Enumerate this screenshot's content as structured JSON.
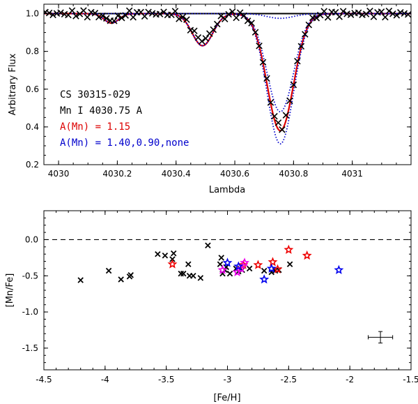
{
  "chart_data": [
    {
      "type": "line",
      "panel": "top",
      "xlabel": "Lambda",
      "ylabel": "Arbitrary Flux",
      "xlim": [
        4029.95,
        4031.2
      ],
      "ylim": [
        0.2,
        1.05
      ],
      "xticks": [
        4030,
        4030.2,
        4030.4,
        4030.6,
        4030.8,
        4031
      ],
      "xtick_labels": [
        "4030",
        "4030.2",
        "4030.4",
        "4030.6",
        "4030.8",
        "4031"
      ],
      "yticks": [
        0.2,
        0.4,
        0.6,
        0.8,
        1.0
      ],
      "ytick_labels": [
        "0.2",
        "0.4",
        "0.6",
        "0.8",
        "1.0"
      ],
      "annotations": [
        {
          "text": "CS 30315-029",
          "color": "#000000"
        },
        {
          "text": "Mn I 4030.75 A",
          "color": "#000000"
        },
        {
          "text": "A(Mn) = 1.15",
          "color": "#dd0000"
        },
        {
          "text": "A(Mn) = 1.40,0.90,none",
          "color": "#0000cc"
        }
      ],
      "continuum": 1.0,
      "lines": [
        {
          "center": 4030.18,
          "sigma": 0.025
        },
        {
          "center": 4030.49,
          "sigma": 0.035
        },
        {
          "center": 4030.755,
          "sigma": 0.045
        }
      ],
      "series": [
        {
          "name": "observed",
          "style": "x",
          "color": "#000000",
          "depths": [
            0.035,
            0.14,
            0.6
          ],
          "step": 0.013
        },
        {
          "name": "A(Mn) = 1.15",
          "style": "solid",
          "color": "#dd0000",
          "depths": [
            0.05,
            0.17,
            0.62
          ]
        },
        {
          "name": "A(Mn) = 1.40",
          "style": "dotted",
          "color": "#0000cc",
          "depths": [
            0.05,
            0.17,
            0.69
          ]
        },
        {
          "name": "A(Mn) = 0.90",
          "style": "dotted",
          "color": "#0000cc",
          "depths": [
            0.05,
            0.17,
            0.52
          ]
        },
        {
          "name": "none",
          "style": "dotted",
          "color": "#0000cc",
          "depths": [
            0.0,
            0.0,
            0.025
          ]
        }
      ]
    },
    {
      "type": "scatter",
      "panel": "bottom",
      "xlabel": "[Fe/H]",
      "ylabel": "[Mn/Fe]",
      "xlim": [
        -4.5,
        -1.5
      ],
      "ylim": [
        -1.8,
        0.4
      ],
      "xticks": [
        -4.5,
        -4,
        -3.5,
        -3,
        -2.5,
        -2,
        -1.5
      ],
      "xtick_labels": [
        "-4.5",
        "-4",
        "-3.5",
        "-3",
        "-2.5",
        "-2",
        "-1.5"
      ],
      "yticks": [
        0.0,
        -0.5,
        -1.0,
        -1.5
      ],
      "ytick_labels": [
        "0.0",
        "-0.5",
        "-1.0",
        "-1.5"
      ],
      "reference_line": 0.0,
      "series": [
        {
          "name": "black crosses",
          "marker": "x",
          "color": "#000000",
          "points": [
            [
              -4.2,
              -0.56
            ],
            [
              -3.97,
              -0.43
            ],
            [
              -3.87,
              -0.55
            ],
            [
              -3.8,
              -0.51
            ],
            [
              -3.79,
              -0.49
            ],
            [
              -3.57,
              -0.2
            ],
            [
              -3.51,
              -0.22
            ],
            [
              -3.45,
              -0.27
            ],
            [
              -3.44,
              -0.19
            ],
            [
              -3.38,
              -0.47
            ],
            [
              -3.36,
              -0.47
            ],
            [
              -3.32,
              -0.34
            ],
            [
              -3.31,
              -0.5
            ],
            [
              -3.28,
              -0.5
            ],
            [
              -3.22,
              -0.53
            ],
            [
              -3.16,
              -0.08
            ],
            [
              -3.06,
              -0.34
            ],
            [
              -3.05,
              -0.25
            ],
            [
              -3.04,
              -0.47
            ],
            [
              -3.02,
              -0.42
            ],
            [
              -3.01,
              -0.38
            ],
            [
              -2.98,
              -0.47
            ],
            [
              -2.93,
              -0.4
            ],
            [
              -2.91,
              -0.44
            ],
            [
              -2.88,
              -0.42
            ],
            [
              -2.82,
              -0.4
            ],
            [
              -2.7,
              -0.43
            ],
            [
              -2.64,
              -0.45
            ],
            [
              -2.61,
              -0.43
            ],
            [
              -2.58,
              -0.42
            ],
            [
              -2.49,
              -0.34
            ]
          ]
        },
        {
          "name": "red stars",
          "marker": "star",
          "color": "#ee0000",
          "points": [
            [
              -3.45,
              -0.34
            ],
            [
              -2.87,
              -0.35
            ],
            [
              -2.75,
              -0.35
            ],
            [
              -2.63,
              -0.31
            ],
            [
              -2.59,
              -0.41
            ],
            [
              -2.5,
              -0.14
            ],
            [
              -2.35,
              -0.22
            ]
          ]
        },
        {
          "name": "magenta stars",
          "marker": "star",
          "color": "#ee00ee",
          "points": [
            [
              -3.04,
              -0.42
            ],
            [
              -2.92,
              -0.45
            ],
            [
              -2.89,
              -0.4
            ],
            [
              -2.86,
              -0.32
            ]
          ]
        },
        {
          "name": "blue stars",
          "marker": "star",
          "color": "#0000ee",
          "points": [
            [
              -3.0,
              -0.32
            ],
            [
              -2.91,
              -0.37
            ],
            [
              -2.7,
              -0.55
            ],
            [
              -2.64,
              -0.4
            ],
            [
              -2.09,
              -0.42
            ]
          ]
        }
      ],
      "error_bar": {
        "x": -1.75,
        "y": -1.35,
        "xerr": 0.1,
        "yerr": 0.08
      }
    }
  ]
}
